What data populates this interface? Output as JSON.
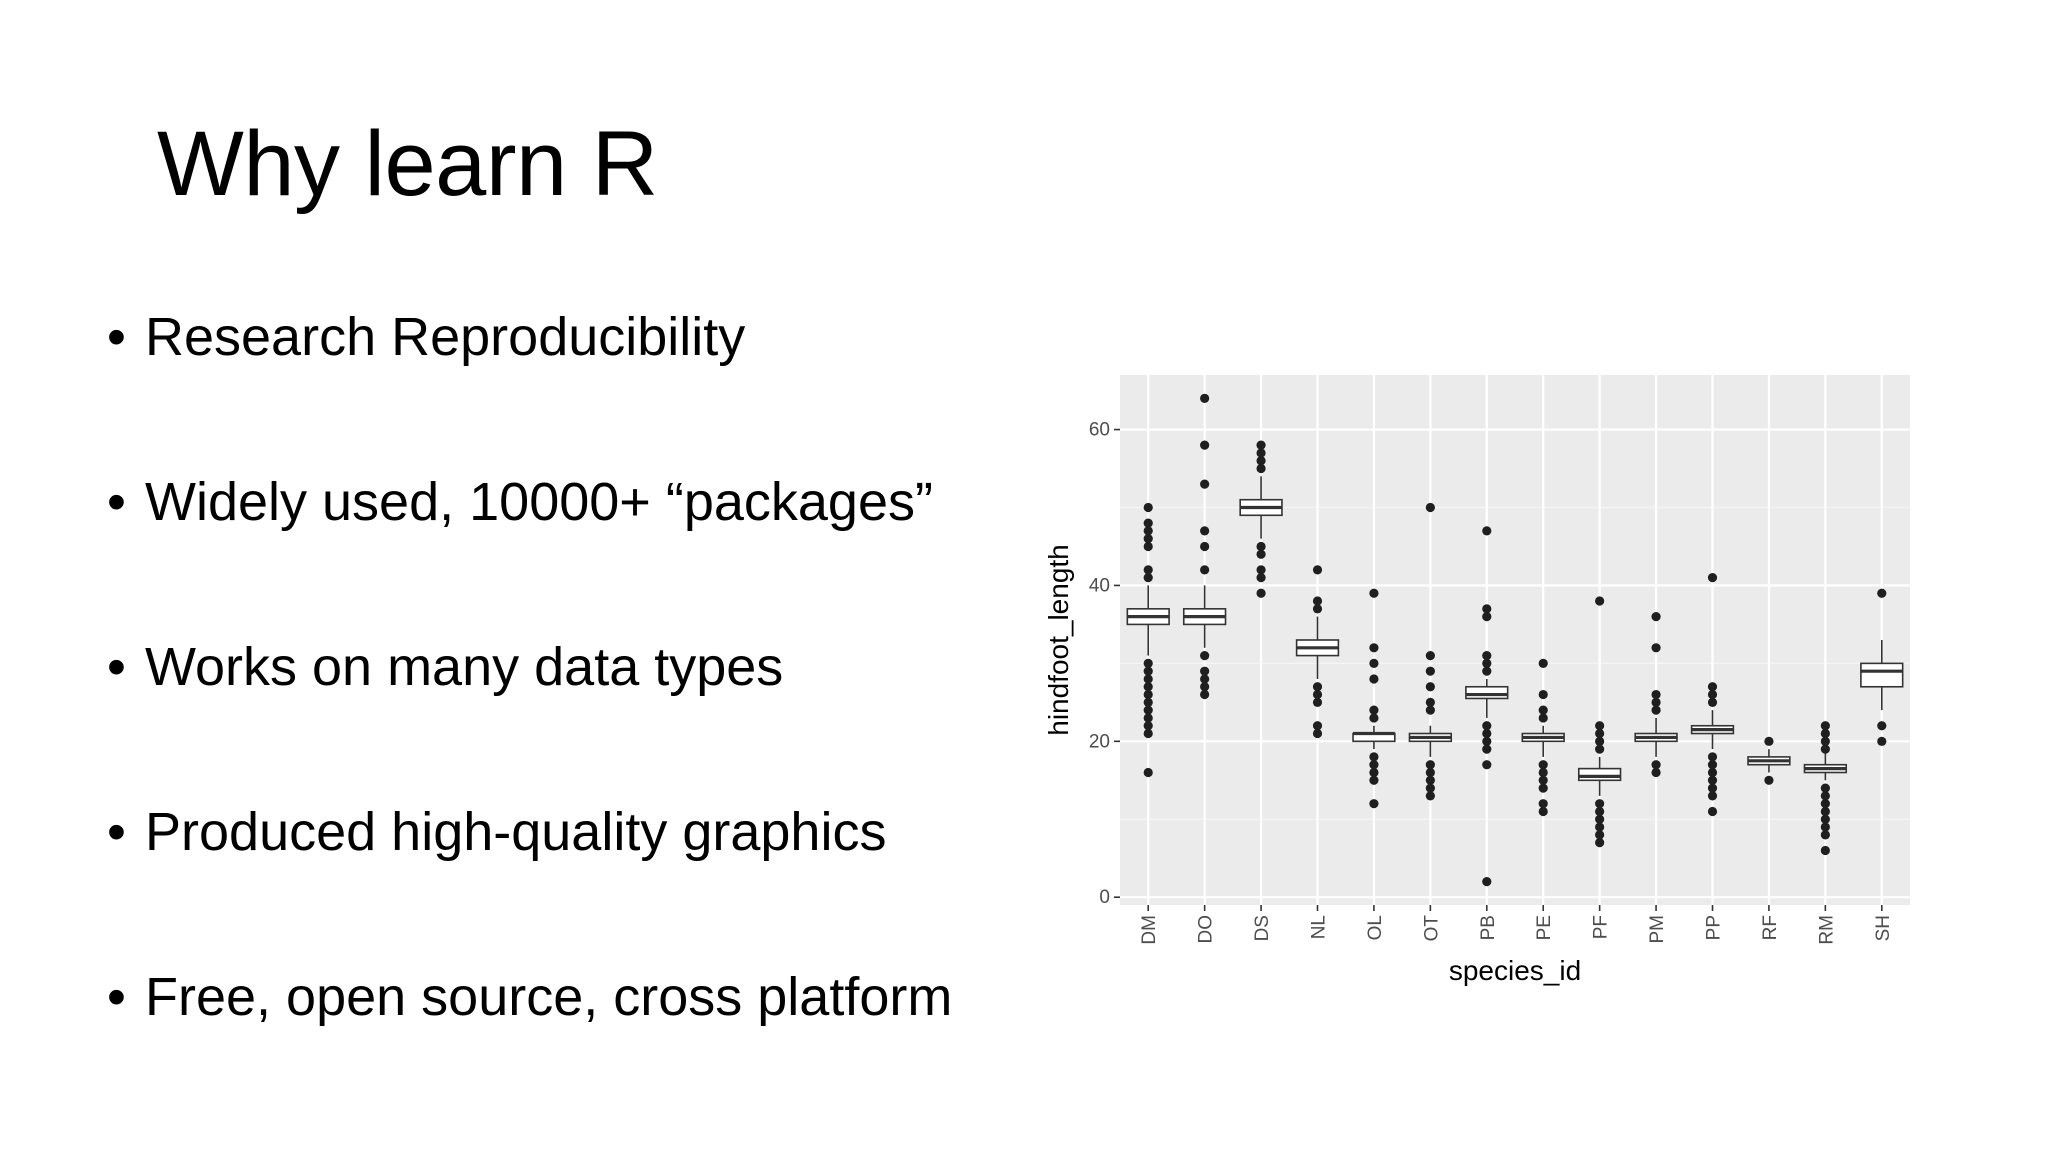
{
  "slide": {
    "title": "Why learn R",
    "bullet_symbol": "•",
    "bullets": [
      "Research Reproducibility",
      "Widely used, 10000+ “packages”",
      "Works on many data types",
      "Produced high-quality graphics",
      "Free, open source, cross platform"
    ]
  },
  "chart_data": {
    "type": "boxplot",
    "xlabel": "species_id",
    "ylabel": "hindfoot_length",
    "ylim": [
      -1,
      67
    ],
    "yticks": [
      0,
      20,
      40,
      60
    ],
    "grid": true,
    "legend": "none",
    "colors": {
      "panel_bg": "#ebebeb",
      "grid_major": "#ffffff",
      "grid_minor": "#f5f5f5",
      "box_fill": "#ffffff",
      "box_stroke": "#333333",
      "outlier": "#1f1f1f",
      "tick_text": "#4d4d4d"
    },
    "categories": [
      "DM",
      "DO",
      "DS",
      "NL",
      "OL",
      "OT",
      "PB",
      "PE",
      "PF",
      "PM",
      "PP",
      "RF",
      "RM",
      "SH"
    ],
    "boxes": [
      {
        "category": "DM",
        "whisker_low": 31,
        "q1": 35,
        "median": 36,
        "q3": 37,
        "whisker_high": 40,
        "outliers": [
          16,
          21,
          22,
          23,
          24,
          25,
          26,
          27,
          28,
          29,
          30,
          41,
          42,
          45,
          46,
          47,
          48,
          50
        ]
      },
      {
        "category": "DO",
        "whisker_low": 32,
        "q1": 35,
        "median": 36,
        "q3": 37,
        "whisker_high": 40,
        "outliers": [
          26,
          27,
          28,
          29,
          31,
          42,
          45,
          47,
          53,
          58,
          64
        ]
      },
      {
        "category": "DS",
        "whisker_low": 46,
        "q1": 49,
        "median": 50,
        "q3": 51,
        "whisker_high": 54,
        "outliers": [
          39,
          41,
          42,
          44,
          45,
          55,
          56,
          57,
          58
        ]
      },
      {
        "category": "NL",
        "whisker_low": 28,
        "q1": 31,
        "median": 32,
        "q3": 33,
        "whisker_high": 36,
        "outliers": [
          21,
          22,
          25,
          26,
          27,
          37,
          38,
          42
        ]
      },
      {
        "category": "OL",
        "whisker_low": 19,
        "q1": 20,
        "median": 21,
        "q3": 21,
        "whisker_high": 22,
        "outliers": [
          12,
          15,
          16,
          17,
          18,
          23,
          24,
          28,
          30,
          32,
          39
        ]
      },
      {
        "category": "OT",
        "whisker_low": 18,
        "q1": 20,
        "median": 20.5,
        "q3": 21,
        "whisker_high": 22,
        "outliers": [
          13,
          14,
          15,
          16,
          17,
          24,
          25,
          27,
          29,
          31,
          50
        ]
      },
      {
        "category": "PB",
        "whisker_low": 23,
        "q1": 25.5,
        "median": 26,
        "q3": 27,
        "whisker_high": 28,
        "outliers": [
          2,
          17,
          19,
          20,
          21,
          22,
          29,
          30,
          31,
          36,
          37,
          47
        ]
      },
      {
        "category": "PE",
        "whisker_low": 18,
        "q1": 20,
        "median": 20.5,
        "q3": 21,
        "whisker_high": 22,
        "outliers": [
          11,
          12,
          14,
          15,
          16,
          17,
          23,
          24,
          26,
          30
        ]
      },
      {
        "category": "PF",
        "whisker_low": 13,
        "q1": 15,
        "median": 15.5,
        "q3": 16.5,
        "whisker_high": 18,
        "outliers": [
          7,
          8,
          9,
          10,
          11,
          12,
          19,
          20,
          21,
          22,
          38
        ]
      },
      {
        "category": "PM",
        "whisker_low": 18,
        "q1": 20,
        "median": 20.5,
        "q3": 21,
        "whisker_high": 23,
        "outliers": [
          16,
          17,
          24,
          25,
          26,
          32,
          36
        ]
      },
      {
        "category": "PP",
        "whisker_low": 19,
        "q1": 21,
        "median": 21.5,
        "q3": 22,
        "whisker_high": 24,
        "outliers": [
          11,
          13,
          14,
          15,
          16,
          17,
          18,
          25,
          26,
          27,
          41
        ]
      },
      {
        "category": "RF",
        "whisker_low": 16,
        "q1": 17,
        "median": 17.5,
        "q3": 18,
        "whisker_high": 19,
        "outliers": [
          15,
          20
        ]
      },
      {
        "category": "RM",
        "whisker_low": 15,
        "q1": 16,
        "median": 16.5,
        "q3": 17,
        "whisker_high": 18.5,
        "outliers": [
          6,
          8,
          9,
          10,
          11,
          12,
          13,
          14,
          19,
          20,
          21,
          22
        ]
      },
      {
        "category": "SH",
        "whisker_low": 24,
        "q1": 27,
        "median": 29,
        "q3": 30,
        "whisker_high": 33,
        "outliers": [
          20,
          22,
          39
        ]
      }
    ]
  }
}
